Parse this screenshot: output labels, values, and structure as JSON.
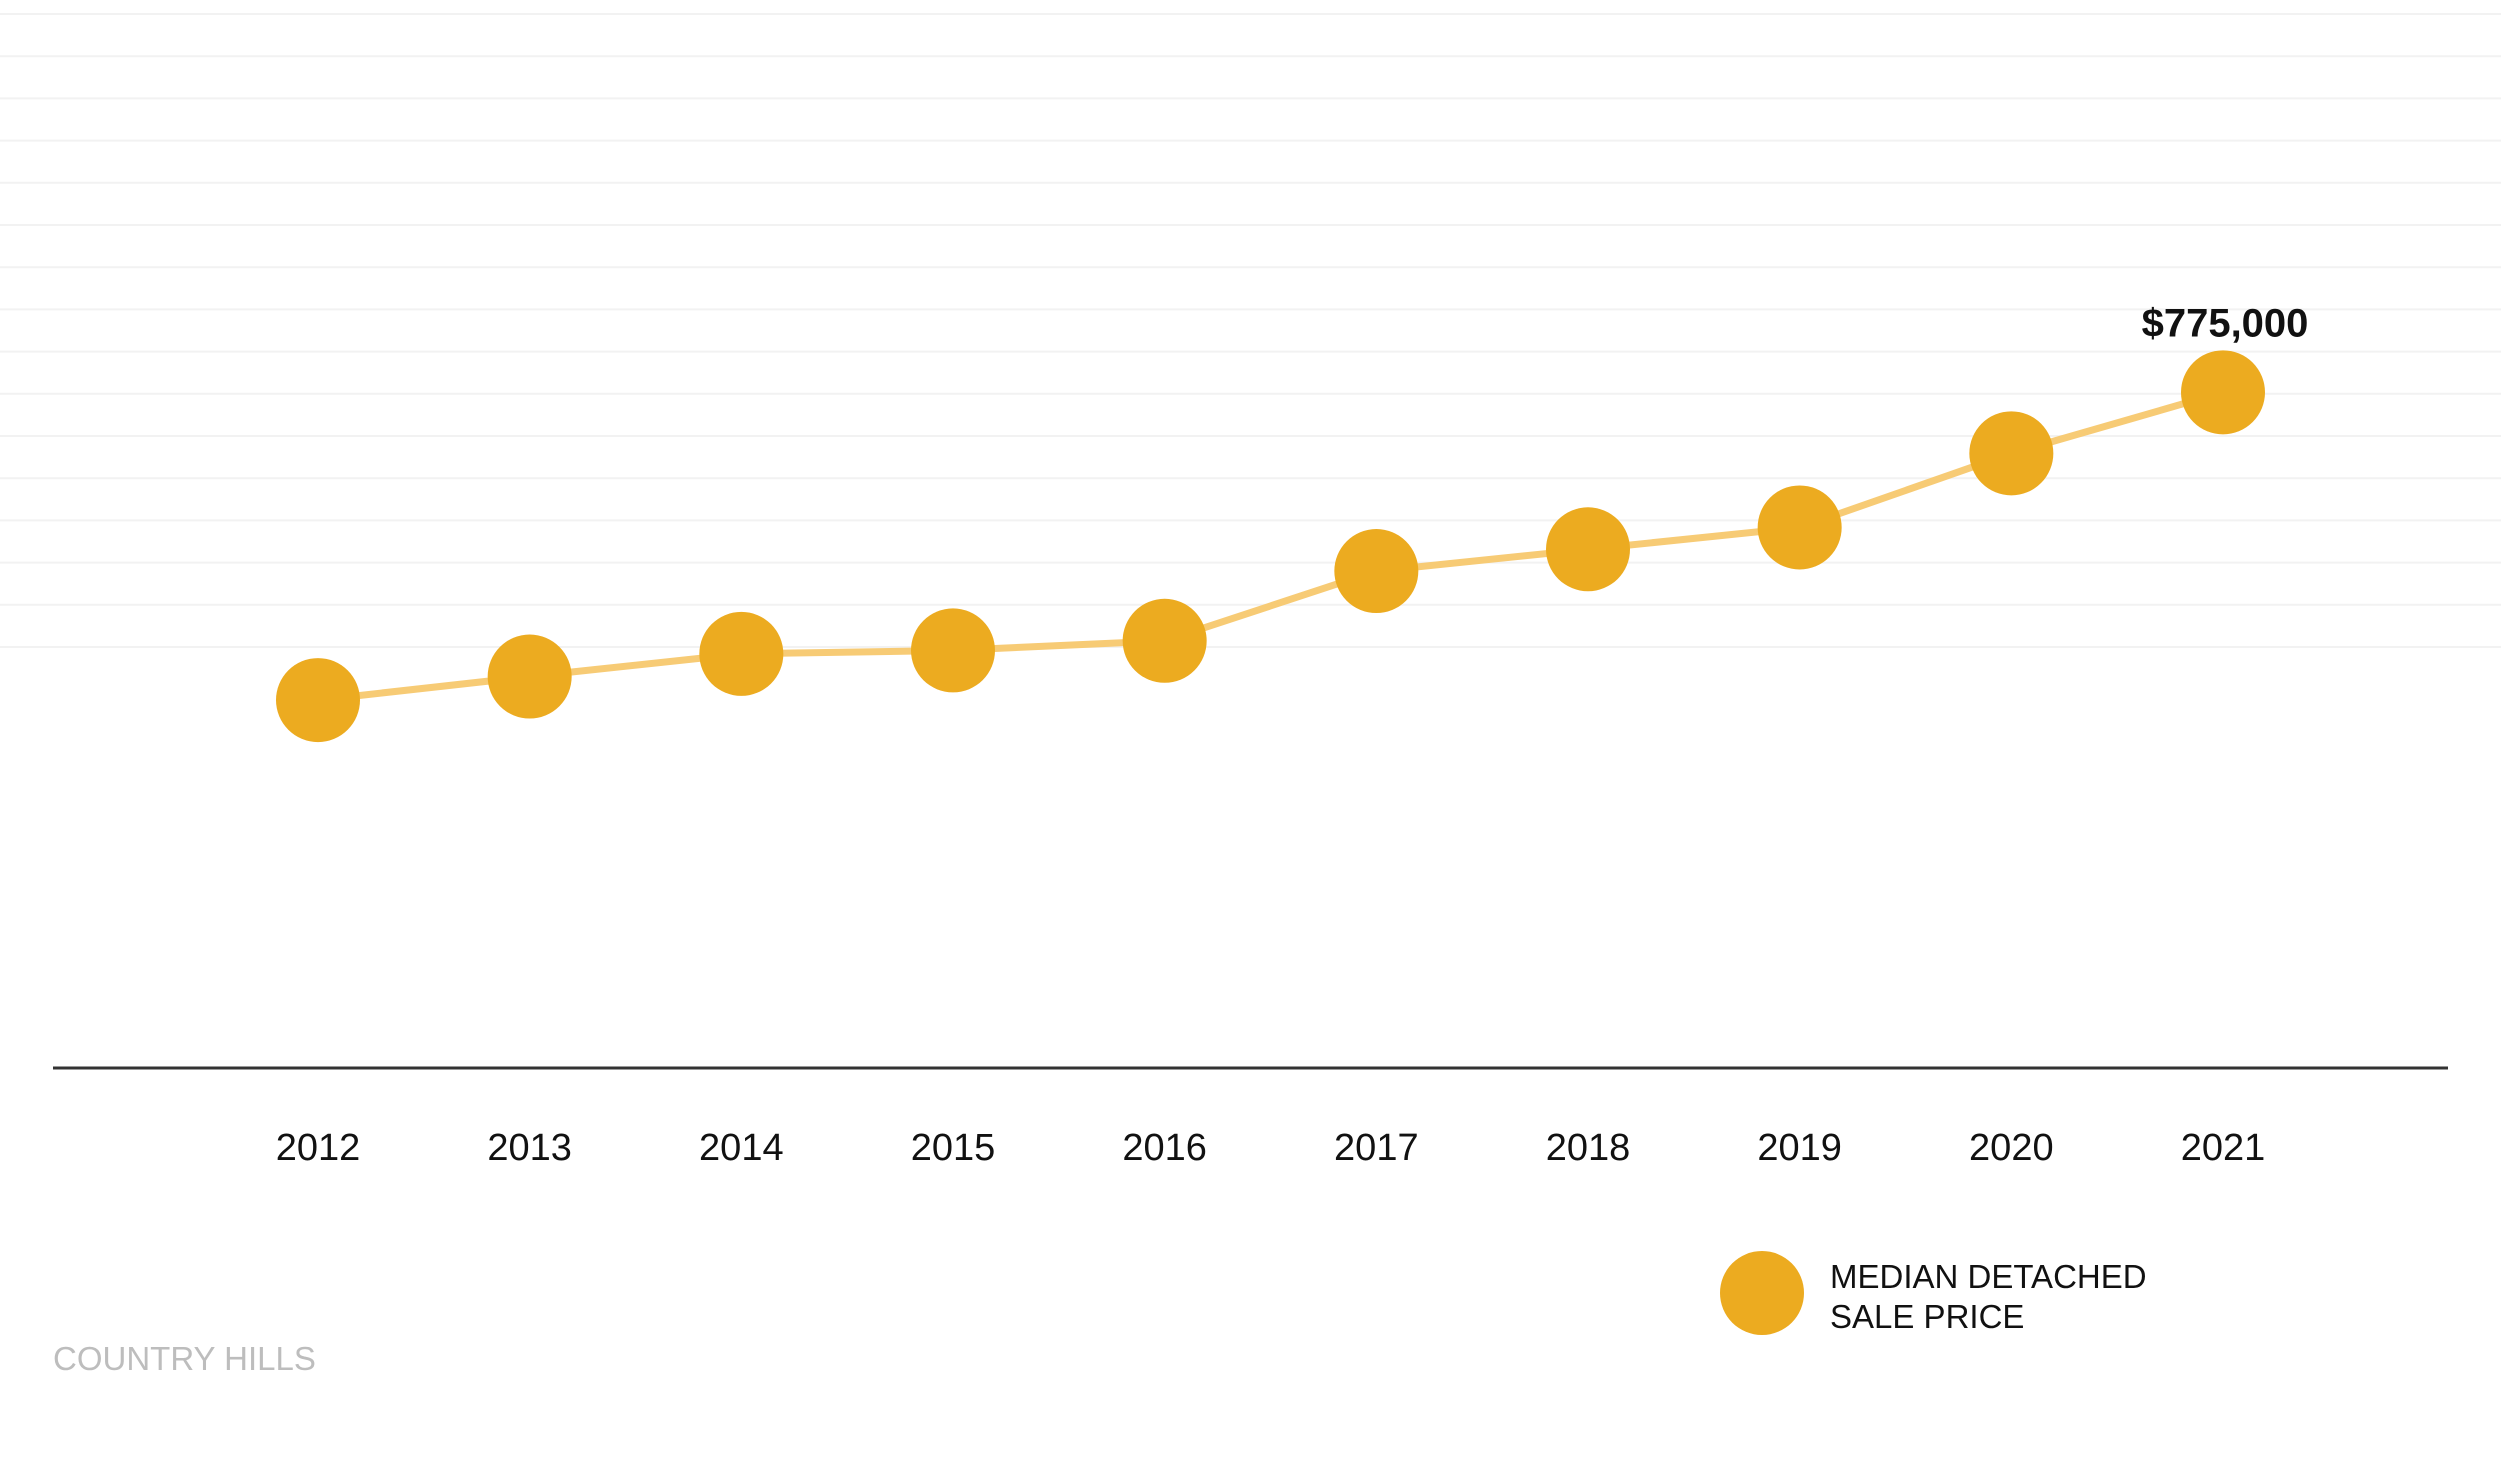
{
  "chart_data": {
    "type": "line",
    "x": [
      "2012",
      "2013",
      "2014",
      "2015",
      "2016",
      "2017",
      "2018",
      "2019",
      "2020",
      "2021"
    ],
    "series": [
      {
        "name": "MEDIAN DETACHED SALE PRICE",
        "values": [
          422000,
          449000,
          475000,
          479000,
          490000,
          570000,
          595000,
          620000,
          705000,
          775000
        ]
      }
    ],
    "annotations": [
      {
        "x": "2021",
        "text": "$775,000"
      }
    ],
    "legend": {
      "position": "bottom-right",
      "lines": [
        "MEDIAN DETACHED",
        "SALE PRICE"
      ]
    },
    "ylim": [
      0,
      1225000
    ],
    "grid": "horizontal",
    "footer": "COUNTRY HILLS",
    "colors": {
      "marker": "#ECAB20",
      "line": "#F7CB75",
      "axis": "#333333",
      "grid": "#F2F2F2",
      "footer": "#BDBDBD",
      "text": "#111111"
    }
  }
}
